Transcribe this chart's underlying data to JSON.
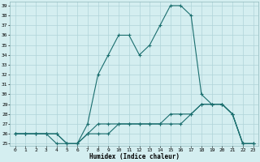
{
  "xlabel": "Humidex (Indice chaleur)",
  "ylabel": "",
  "bg_color": "#d4eef0",
  "grid_color": "#b0d4d8",
  "line_color": "#1a6e6e",
  "ylim": [
    25,
    39
  ],
  "xlim": [
    0,
    23
  ],
  "yticks": [
    25,
    26,
    27,
    28,
    29,
    30,
    31,
    32,
    33,
    34,
    35,
    36,
    37,
    38,
    39
  ],
  "xticks": [
    0,
    1,
    2,
    3,
    4,
    5,
    6,
    7,
    8,
    9,
    10,
    11,
    12,
    13,
    14,
    15,
    16,
    17,
    18,
    19,
    20,
    21,
    22,
    23
  ],
  "line1_x": [
    0,
    1,
    2,
    3,
    4,
    5,
    6,
    7,
    8,
    9,
    10,
    11,
    12,
    13,
    14,
    15,
    16,
    17,
    18,
    19,
    20,
    21,
    22,
    23
  ],
  "line1_y": [
    26,
    26,
    26,
    26,
    25,
    25,
    25,
    27,
    32,
    34,
    36,
    36,
    34,
    35,
    37,
    39,
    39,
    38,
    30,
    29,
    29,
    28,
    25,
    25
  ],
  "line2_x": [
    0,
    1,
    2,
    3,
    4,
    5,
    6,
    7,
    8,
    9,
    10,
    11,
    12,
    13,
    14,
    15,
    16,
    17,
    18,
    19,
    20,
    21,
    22,
    23
  ],
  "line2_y": [
    26,
    26,
    26,
    26,
    26,
    25,
    25,
    26,
    26,
    26,
    27,
    27,
    27,
    27,
    27,
    27,
    27,
    28,
    29,
    29,
    29,
    28,
    25,
    25
  ],
  "line3_x": [
    0,
    1,
    2,
    3,
    4,
    5,
    6,
    7,
    8,
    9,
    10,
    11,
    12,
    13,
    14,
    15,
    16,
    17,
    18,
    19,
    20,
    21,
    22,
    23
  ],
  "line3_y": [
    26,
    26,
    26,
    26,
    26,
    25,
    25,
    26,
    27,
    27,
    27,
    27,
    27,
    27,
    27,
    28,
    28,
    28,
    29,
    29,
    29,
    28,
    25,
    25
  ]
}
